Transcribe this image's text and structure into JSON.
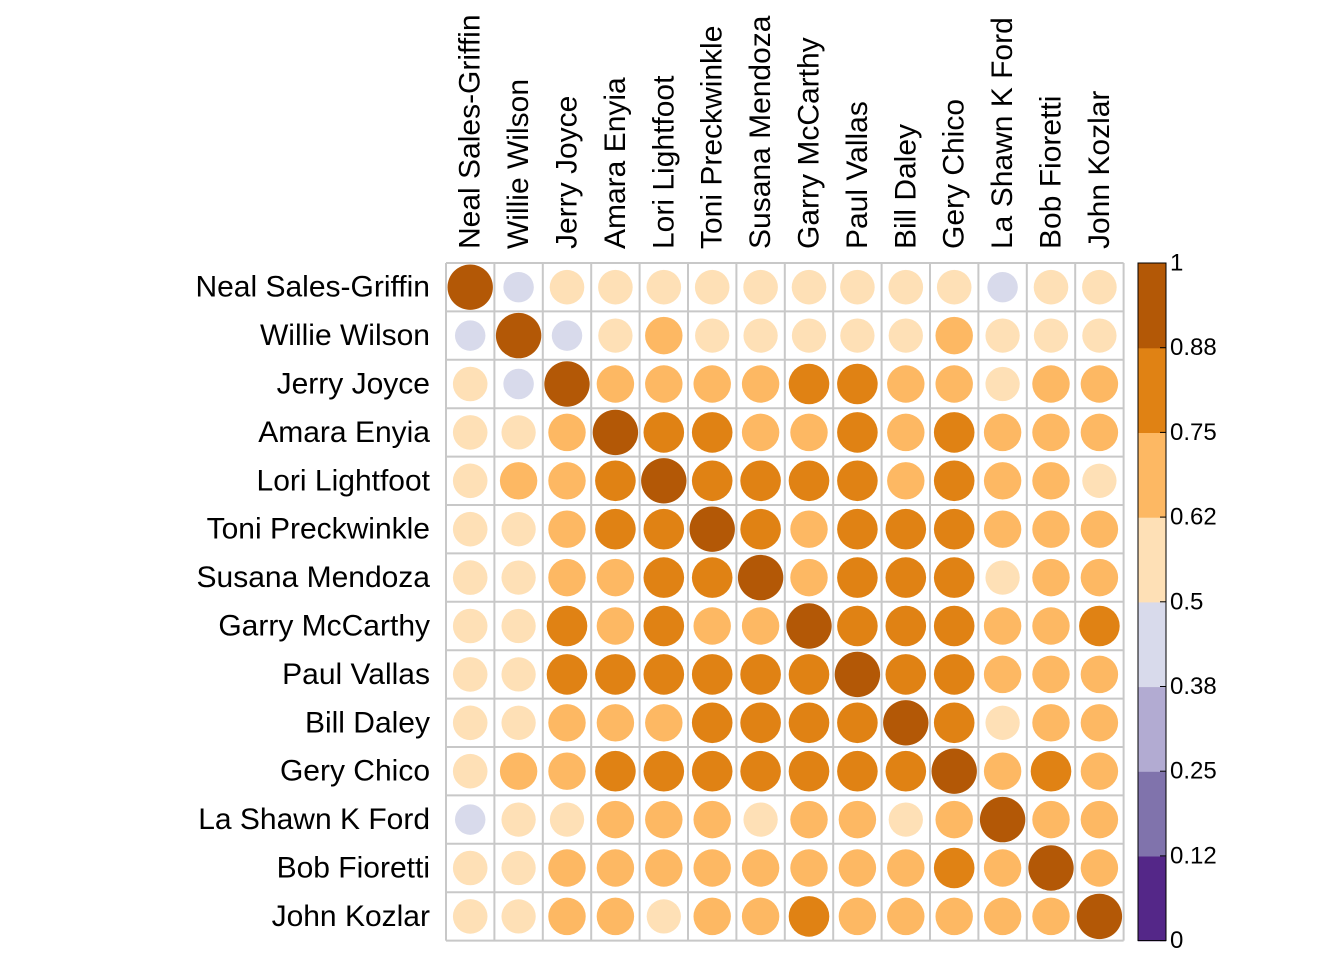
{
  "chart_data": {
    "type": "heatmap",
    "title": "",
    "variables": [
      "Neal Sales-Griffin",
      "Willie Wilson",
      "Jerry Joyce",
      "Amara Enyia",
      "Lori Lightfoot",
      "Toni Preckwinkle",
      "Susana Mendoza",
      "Garry McCarthy",
      "Paul Vallas",
      "Bill Daley",
      "Gery Chico",
      "La Shawn K Ford",
      "Bob Fioretti",
      "John Kozlar"
    ],
    "matrix": [
      [
        1.0,
        0.45,
        0.58,
        0.58,
        0.58,
        0.58,
        0.58,
        0.58,
        0.58,
        0.58,
        0.58,
        0.45,
        0.58,
        0.58
      ],
      [
        0.45,
        1.0,
        0.45,
        0.57,
        0.68,
        0.57,
        0.57,
        0.57,
        0.57,
        0.57,
        0.68,
        0.57,
        0.57,
        0.57
      ],
      [
        0.58,
        0.45,
        1.0,
        0.68,
        0.68,
        0.68,
        0.68,
        0.8,
        0.8,
        0.68,
        0.68,
        0.57,
        0.68,
        0.68
      ],
      [
        0.58,
        0.57,
        0.68,
        1.0,
        0.8,
        0.8,
        0.68,
        0.68,
        0.8,
        0.68,
        0.8,
        0.68,
        0.68,
        0.68
      ],
      [
        0.58,
        0.68,
        0.68,
        0.8,
        1.0,
        0.8,
        0.8,
        0.8,
        0.8,
        0.68,
        0.8,
        0.68,
        0.68,
        0.57
      ],
      [
        0.58,
        0.57,
        0.68,
        0.8,
        0.8,
        1.0,
        0.8,
        0.68,
        0.8,
        0.8,
        0.8,
        0.68,
        0.68,
        0.68
      ],
      [
        0.58,
        0.57,
        0.68,
        0.68,
        0.8,
        0.8,
        1.0,
        0.68,
        0.8,
        0.8,
        0.8,
        0.57,
        0.68,
        0.68
      ],
      [
        0.58,
        0.57,
        0.8,
        0.68,
        0.8,
        0.68,
        0.68,
        1.0,
        0.8,
        0.8,
        0.8,
        0.68,
        0.68,
        0.8
      ],
      [
        0.58,
        0.57,
        0.8,
        0.8,
        0.8,
        0.8,
        0.8,
        0.8,
        1.0,
        0.8,
        0.8,
        0.68,
        0.68,
        0.68
      ],
      [
        0.58,
        0.57,
        0.68,
        0.68,
        0.68,
        0.8,
        0.8,
        0.8,
        0.8,
        1.0,
        0.8,
        0.57,
        0.68,
        0.68
      ],
      [
        0.58,
        0.68,
        0.68,
        0.8,
        0.8,
        0.8,
        0.8,
        0.8,
        0.8,
        0.8,
        1.0,
        0.68,
        0.8,
        0.68
      ],
      [
        0.45,
        0.57,
        0.57,
        0.68,
        0.68,
        0.68,
        0.57,
        0.68,
        0.68,
        0.57,
        0.68,
        1.0,
        0.68,
        0.68
      ],
      [
        0.58,
        0.57,
        0.68,
        0.68,
        0.68,
        0.68,
        0.68,
        0.68,
        0.68,
        0.68,
        0.8,
        0.68,
        1.0,
        0.68
      ],
      [
        0.58,
        0.57,
        0.68,
        0.68,
        0.57,
        0.68,
        0.68,
        0.8,
        0.68,
        0.68,
        0.68,
        0.68,
        0.68,
        1.0
      ]
    ],
    "colorbar": {
      "range": [
        0,
        1
      ],
      "ticks": [
        "0",
        "0.12",
        "0.25",
        "0.38",
        "0.5",
        "0.62",
        "0.75",
        "0.88",
        "1"
      ],
      "colors": [
        "#542788",
        "#8073ac",
        "#b2abd2",
        "#d8daeb",
        "#fee0b6",
        "#fdb863",
        "#e08214",
        "#b35806"
      ]
    },
    "legend": "right"
  }
}
